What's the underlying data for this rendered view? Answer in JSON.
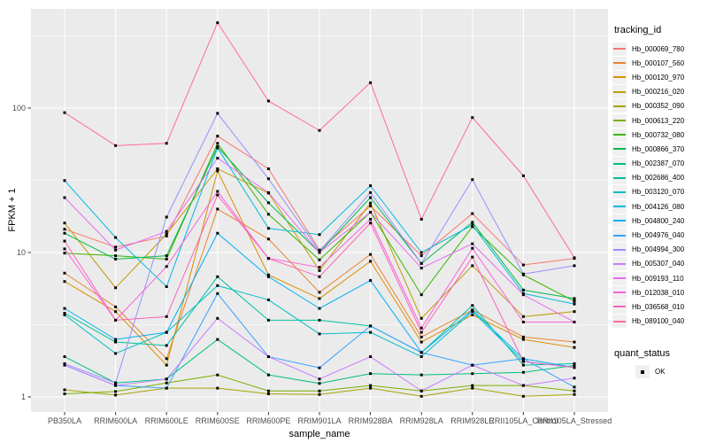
{
  "figure": {
    "background": "#FFFFFF",
    "panel_bg": "#EBEBEB",
    "grid_color": "#FFFFFF",
    "axis_text_color": "#4D4D4D",
    "tick_mark_color": "#333333",
    "point_color": "#000000"
  },
  "chart_data": {
    "type": "line",
    "title": "",
    "xlabel": "sample_name",
    "ylabel": "FPKM + 1",
    "y_scale": "log10",
    "ylim": [
      1,
      490
    ],
    "y_ticks": [
      1,
      10,
      100
    ],
    "y_minor_ticks": [
      3.1623,
      31.623,
      316.23
    ],
    "grid": true,
    "point_shape": "filled-square",
    "categories": [
      "PB350LA",
      "RRIM600LA",
      "RRIM600LE",
      "RRIM600SE",
      "RRIM600PE",
      "RRIM901LA",
      "RRIM928BA",
      "RRIM928LA",
      "RRIM928LE",
      "RRII105LA_Control",
      "RRII105LA_Stressed"
    ],
    "series": [
      {
        "name": "Hb_000069_780",
        "color": "#F8766D",
        "values": [
          14.5,
          10.9,
          13,
          64,
          38,
          10.4,
          21,
          9.5,
          18.6,
          8.2,
          9.1
        ]
      },
      {
        "name": "Hb_000107_560",
        "color": "#EA8331",
        "values": [
          7.2,
          4.2,
          1.84,
          20,
          12.4,
          5.3,
          9.7,
          2.6,
          4,
          2.6,
          2.4
        ]
      },
      {
        "name": "Hb_000120_970",
        "color": "#D89000",
        "values": [
          6.3,
          3.9,
          1.66,
          36.7,
          7,
          4.8,
          8.7,
          2.4,
          3.7,
          2.5,
          2.2
        ]
      },
      {
        "name": "Hb_000216_020",
        "color": "#C09B00",
        "values": [
          16,
          5.7,
          13.4,
          38,
          25.8,
          7.5,
          22,
          3.5,
          8.1,
          3.6,
          3.9
        ]
      },
      {
        "name": "Hb_000352_090",
        "color": "#A3A500",
        "values": [
          1.12,
          1.03,
          1.15,
          1.15,
          1.05,
          1.04,
          1.15,
          1.01,
          1.15,
          1.01,
          1.04
        ]
      },
      {
        "name": "Hb_000613_220",
        "color": "#7CAE00",
        "values": [
          1.05,
          1.09,
          1.25,
          1.42,
          1.1,
          1.1,
          1.2,
          1.1,
          1.2,
          1.2,
          1.1
        ]
      },
      {
        "name": "Hb_000732_080",
        "color": "#39B600",
        "values": [
          9.9,
          9.5,
          9,
          57,
          18.4,
          8.9,
          19,
          5.1,
          15.1,
          7,
          4.6
        ]
      },
      {
        "name": "Hb_000866_370",
        "color": "#00BB4E",
        "values": [
          13.6,
          9,
          9.5,
          54,
          22.1,
          10,
          24,
          8.4,
          16.2,
          5.5,
          4.8
        ]
      },
      {
        "name": "Hb_002387_070",
        "color": "#00BF7D",
        "values": [
          1.9,
          1.25,
          1.33,
          2.5,
          1.42,
          1.24,
          1.45,
          1.42,
          1.45,
          1.48,
          1.65
        ]
      },
      {
        "name": "Hb_002686_400",
        "color": "#00C1A3",
        "values": [
          3.8,
          2.4,
          2.27,
          6.8,
          3.4,
          3.4,
          3.1,
          2.03,
          4.3,
          1.66,
          1.7
        ]
      },
      {
        "name": "Hb_003120_070",
        "color": "#00BFC4",
        "values": [
          3.7,
          2,
          2.8,
          5.9,
          4.7,
          2.73,
          2.8,
          1.9,
          3.9,
          1.76,
          1.6
        ]
      },
      {
        "name": "Hb_004126_080",
        "color": "#00BAE0",
        "values": [
          31.5,
          12.7,
          5.8,
          53,
          14.7,
          13.3,
          29,
          10,
          15.5,
          5.2,
          4.4
        ]
      },
      {
        "name": "Hb_004800_240",
        "color": "#00B0F6",
        "values": [
          4.1,
          2.5,
          2.8,
          13.6,
          6.8,
          4.1,
          6.4,
          2.03,
          4,
          1.84,
          1.6
        ]
      },
      {
        "name": "Hb_004976_040",
        "color": "#35A2FF",
        "values": [
          1.66,
          1.2,
          1.15,
          5.2,
          1.9,
          1.59,
          3.1,
          2.03,
          1.66,
          1.84,
          1.17
        ]
      },
      {
        "name": "Hb_004994_300",
        "color": "#9590FF",
        "values": [
          1.7,
          1.25,
          17.6,
          92,
          32.4,
          10.2,
          26,
          8.4,
          32,
          7.1,
          8.1
        ]
      },
      {
        "name": "Hb_005307_040",
        "color": "#C77CFF",
        "values": [
          1.66,
          1.2,
          1.33,
          3.5,
          1.9,
          1.33,
          1.9,
          1.1,
          1.66,
          1.2,
          1.35
        ]
      },
      {
        "name": "Hb_009193_110",
        "color": "#E76BF3",
        "values": [
          24,
          10.4,
          14,
          45,
          26,
          10,
          19,
          7.8,
          11.5,
          5.1,
          3.3
        ]
      },
      {
        "name": "Hb_012038_010",
        "color": "#FA62DB",
        "values": [
          10.6,
          3.4,
          8,
          26.5,
          9.1,
          7.9,
          17,
          3,
          10.7,
          3.3,
          3.3
        ]
      },
      {
        "name": "Hb_036568_010",
        "color": "#FF62BC",
        "values": [
          12,
          3.4,
          3.6,
          25,
          9.1,
          6.8,
          16,
          2.8,
          9.3,
          1.76,
          1.6
        ]
      },
      {
        "name": "Hb_089100_040",
        "color": "#FF6A98",
        "values": [
          93,
          55,
          57,
          390,
          112,
          70,
          150,
          17,
          86,
          34,
          9.2
        ]
      }
    ],
    "legend": {
      "title": "tracking_id",
      "position": "right"
    },
    "legend2": {
      "title": "quant_status",
      "items": [
        "OK"
      ]
    }
  }
}
